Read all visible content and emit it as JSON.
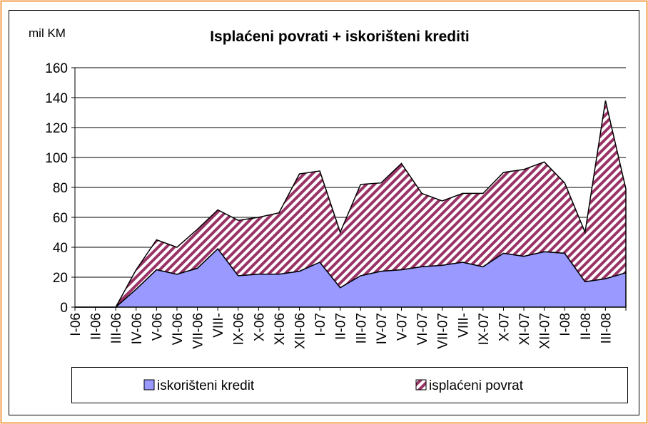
{
  "chart_data": {
    "type": "stacked_area",
    "title": "Isplaćeni povrati + iskorišteni krediti",
    "y_label": "mil KM",
    "categories": [
      "I-06",
      "II-06",
      "III-06",
      "IV-06",
      "V-06",
      "VI-06",
      "VII-06",
      "VIII-",
      "IX-06",
      "X-06",
      "XI-06",
      "XII-06",
      "I-07",
      "II-07",
      "III-07",
      "IV-07",
      "V-07",
      "VI-07",
      "VII-07",
      "VIII-",
      "IX-07",
      "X-07",
      "XI-07",
      "XII-07",
      "I-08",
      "II-08",
      "III-08",
      null
    ],
    "series": [
      {
        "name": "iskorišteni kredit",
        "color": "#9999ff",
        "values": [
          0,
          0,
          0,
          12,
          25,
          22,
          26,
          39,
          21,
          22,
          22,
          24,
          30,
          13,
          21,
          24,
          25,
          27,
          28,
          30,
          27,
          36,
          34,
          37,
          36,
          17,
          19,
          23
        ]
      },
      {
        "name": "isplaćeni povrat",
        "color": "#993366",
        "values": [
          0,
          0,
          0,
          13,
          20,
          18,
          26,
          26,
          37,
          38,
          41,
          65,
          61,
          37,
          61,
          59,
          71,
          49,
          43,
          46,
          49,
          54,
          58,
          60,
          47,
          33,
          119,
          56
        ]
      }
    ],
    "ylim": [
      0,
      160
    ],
    "yticks": [
      0,
      20,
      40,
      60,
      80,
      100,
      120,
      140,
      160
    ],
    "grid": true
  }
}
